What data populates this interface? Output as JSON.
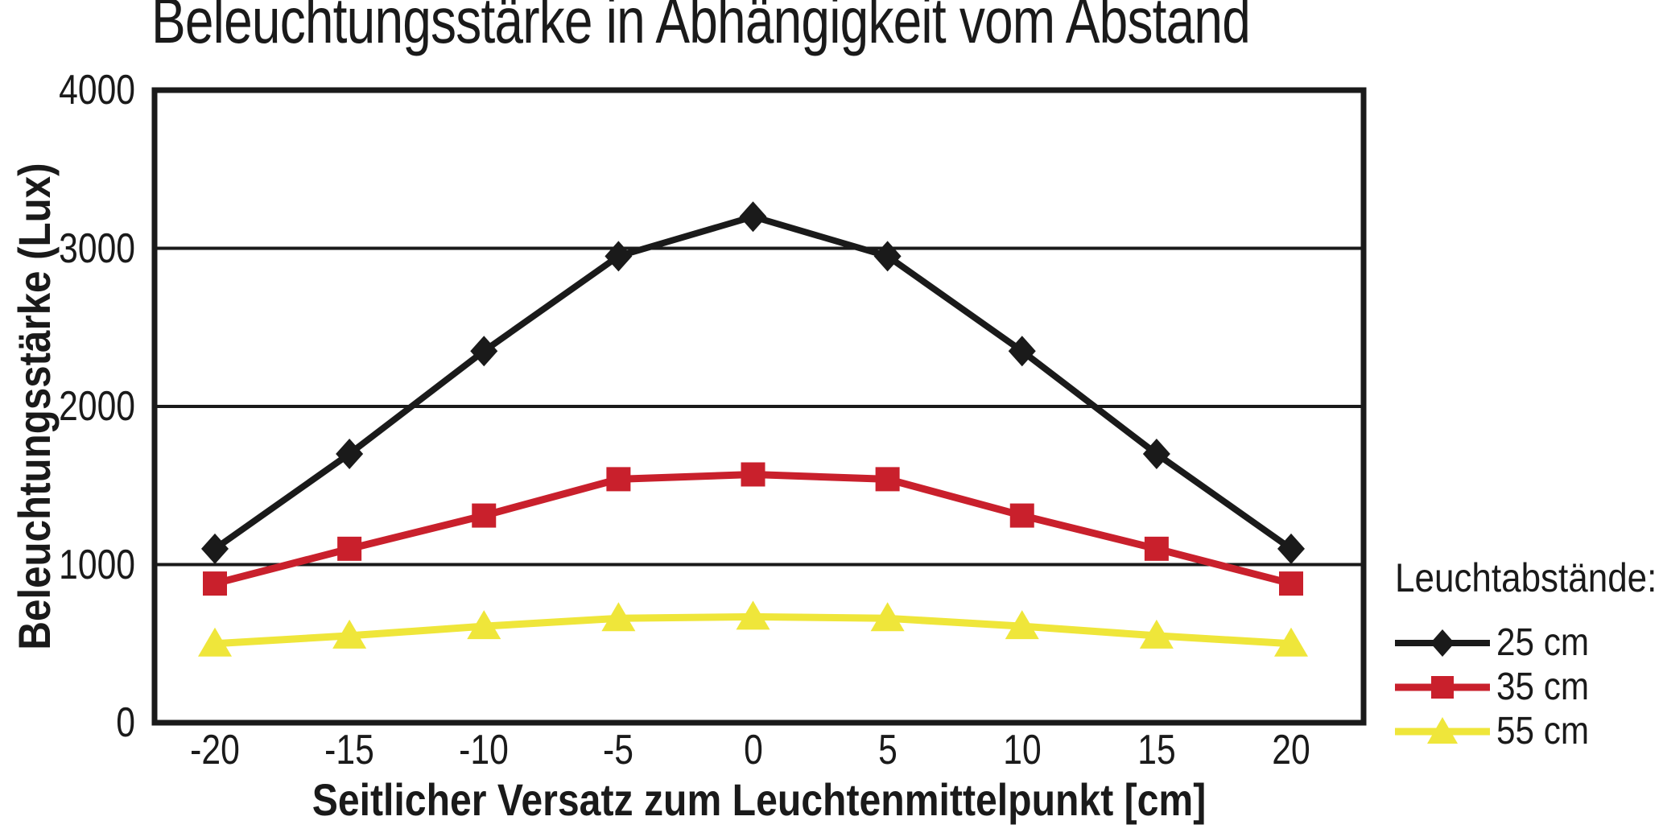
{
  "title": "Beleuchtungsstärke in Abhängigkeit vom Abstand",
  "chart_data": {
    "type": "line",
    "title": "Beleuchtungsstärke in Abhängigkeit vom Abstand",
    "xlabel": "Seitlicher Versatz zum Leuchtenmittelpunkt [cm]",
    "ylabel": "Beleuchtungsstärke (Lux)",
    "x": [
      -20,
      -15,
      -10,
      -5,
      0,
      5,
      10,
      15,
      20
    ],
    "xtick_labels": [
      "-20",
      "-15",
      "-10",
      "-5",
      "0",
      "5",
      "10",
      "15",
      "20"
    ],
    "yticks": [
      0,
      1000,
      2000,
      3000,
      4000
    ],
    "ytick_labels": [
      "0",
      "1000",
      "2000",
      "3000",
      "4000"
    ],
    "ylim": [
      0,
      4000
    ],
    "grid": "horizontal-only",
    "plot_border": true,
    "legend_position": "right",
    "legend_title": "Leuchtabstände:",
    "series": [
      {
        "name": "25 cm",
        "marker": "diamond",
        "color": "#1a1a1a",
        "line_width": 8,
        "values": [
          1100,
          1700,
          2350,
          2950,
          3200,
          2950,
          2350,
          1700,
          1100
        ]
      },
      {
        "name": "35 cm",
        "marker": "square",
        "color": "#c9202c",
        "line_width": 9,
        "values": [
          880,
          1100,
          1310,
          1540,
          1570,
          1540,
          1310,
          1100,
          880
        ]
      },
      {
        "name": "55 cm",
        "marker": "triangle",
        "color": "#efe63a",
        "line_width": 9,
        "values": [
          500,
          550,
          610,
          660,
          670,
          660,
          610,
          550,
          500
        ]
      }
    ]
  },
  "colors": {
    "foreground": "#1a1a1a",
    "background": "#ffffff",
    "series_25cm": "#1a1a1a",
    "series_35cm": "#c9202c",
    "series_55cm": "#efe63a"
  }
}
